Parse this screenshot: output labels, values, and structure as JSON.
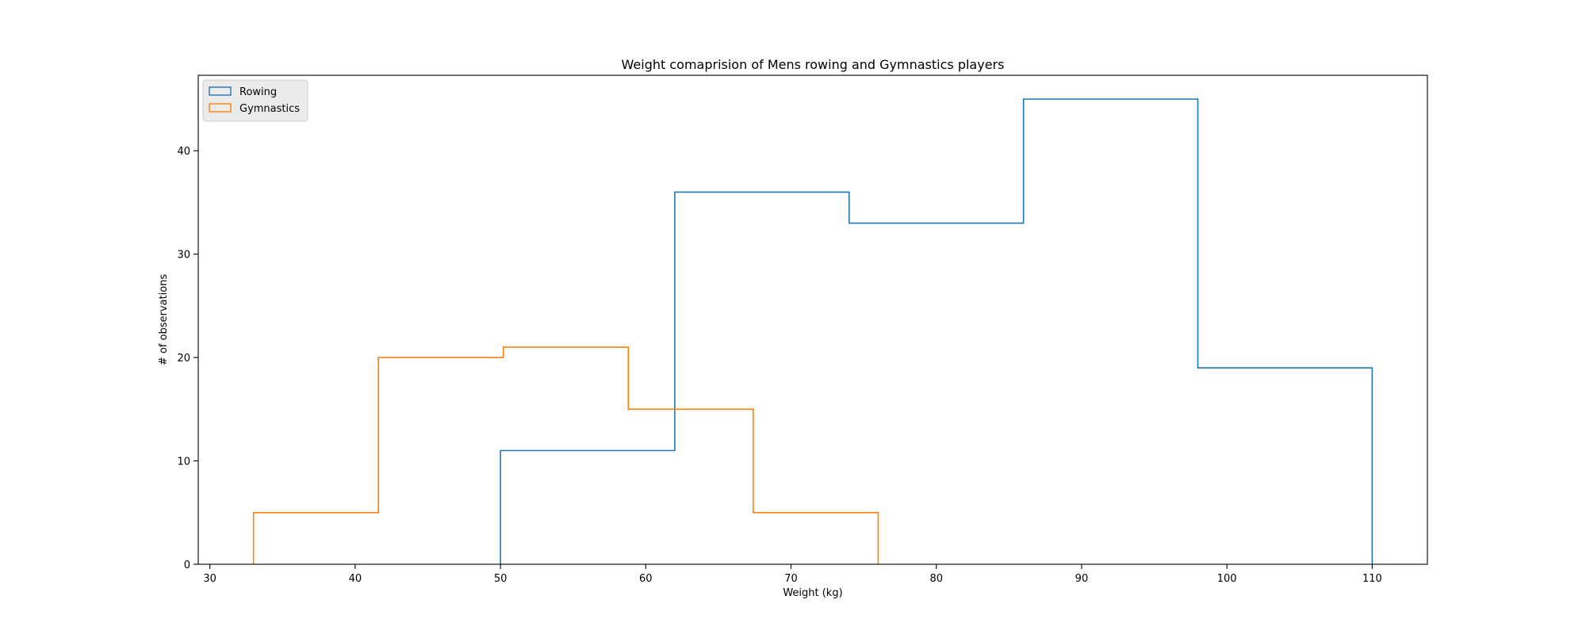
{
  "chart_data": {
    "type": "histogram",
    "title": "Weight comaprision of Mens rowing and Gymnastics players",
    "xlabel": "Weight (kg)",
    "ylabel": "# of observations",
    "xlim": [
      29.2,
      113.8
    ],
    "ylim": [
      0,
      47.3
    ],
    "xticks": [
      30,
      40,
      50,
      60,
      70,
      80,
      90,
      100,
      110
    ],
    "yticks": [
      0,
      10,
      20,
      30,
      40
    ],
    "grid": false,
    "legend_position": "top-left",
    "series": [
      {
        "name": "Rowing",
        "color": "#1f77b4",
        "bin_edges": [
          50,
          62,
          74,
          86,
          98,
          110
        ],
        "counts": [
          11,
          36,
          33,
          45,
          19
        ]
      },
      {
        "name": "Gymnastics",
        "color": "#ff7f0e",
        "bin_edges": [
          33,
          41.6,
          50.2,
          58.8,
          67.4,
          76
        ],
        "counts": [
          5,
          20,
          21,
          15,
          5
        ]
      }
    ]
  }
}
